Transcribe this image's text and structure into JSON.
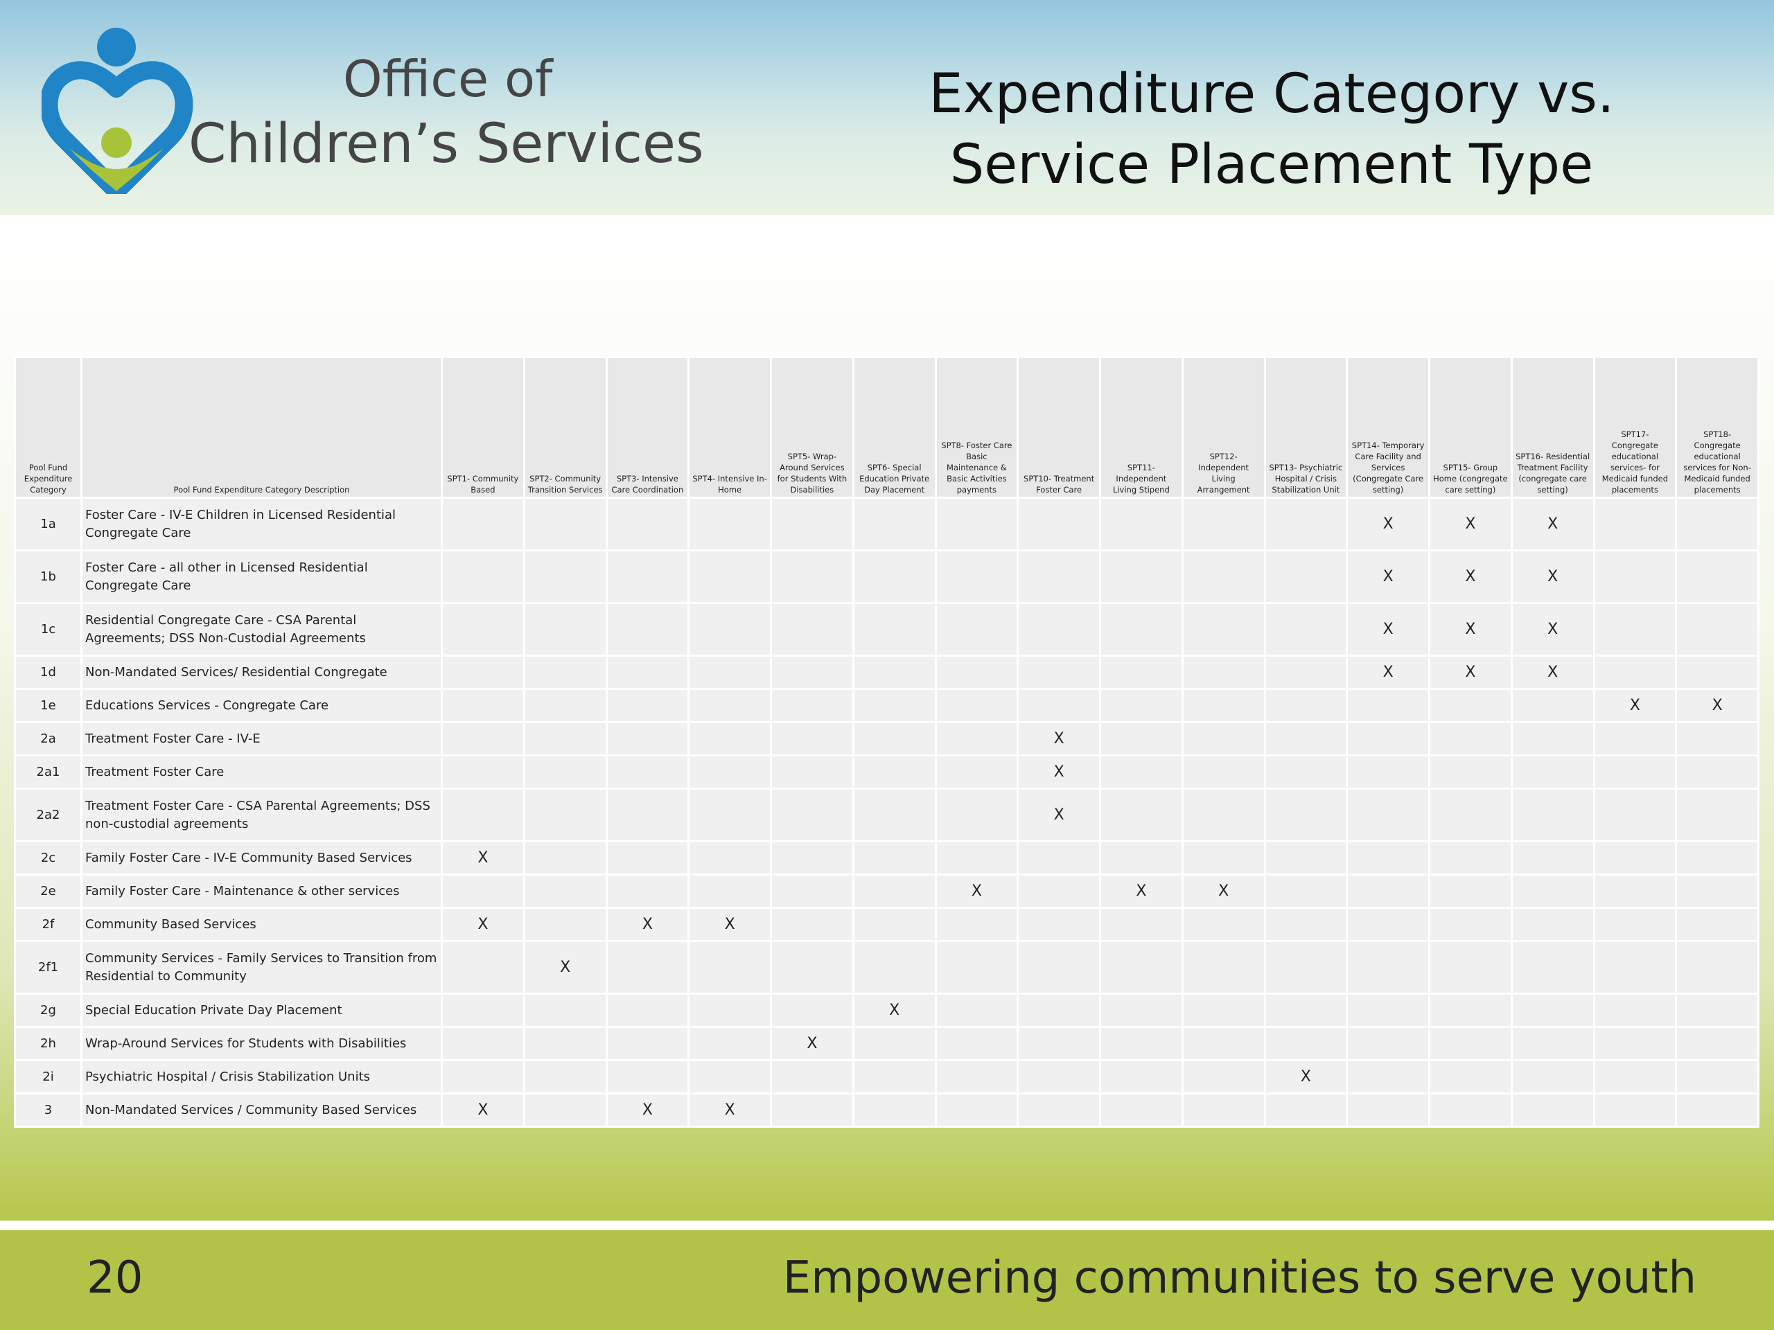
{
  "header": {
    "org_line1": "Office of",
    "org_line2": "Children’s Services",
    "title": "Expenditure Category vs. Service Placement Type"
  },
  "colors": {
    "logo_blue": "#1f85c6",
    "logo_green": "#a8c23a",
    "footer_green": "#b2c447"
  },
  "table": {
    "headers": [
      "Pool Fund Expenditure Category",
      "Pool Fund Expenditure Category Description",
      "SPT1- Community Based",
      "SPT2- Community Transition Services",
      "SPT3- Intensive Care Coordination",
      "SPT4- Intensive In-Home",
      "SPT5- Wrap-Around Services for Students With Disabilities",
      "SPT6- Special Education Private Day Placement",
      "SPT8- Foster Care Basic Maintenance & Basic Activities payments",
      "SPT10- Treatment Foster Care",
      "SPT11- Independent Living Stipend",
      "SPT12- Independent Living Arrangement",
      "SPT13- Psychiatric Hospital / Crisis Stabilization Unit",
      "SPT14- Temporary Care Facility and Services (Congregate Care setting)",
      "SPT15- Group Home (congregate care setting)",
      "SPT16- Residential Treatment Facility (congregate care setting)",
      "SPT17- Congregate educational services- for Medicaid funded placements",
      "SPT18- Congregate educational services for Non-Medicaid funded placements"
    ],
    "rows": [
      {
        "code": "1a",
        "desc": "Foster Care - IV-E Children in Licensed Residential Congregate Care",
        "marks": [
          "",
          "",
          "",
          "",
          "",
          "",
          "",
          "",
          "",
          "",
          "",
          "X",
          "X",
          "X",
          "",
          ""
        ]
      },
      {
        "code": "1b",
        "desc": "Foster Care - all other in Licensed Residential Congregate Care",
        "marks": [
          "",
          "",
          "",
          "",
          "",
          "",
          "",
          "",
          "",
          "",
          "",
          "X",
          "X",
          "X",
          "",
          ""
        ]
      },
      {
        "code": "1c",
        "desc": "Residential Congregate Care - CSA Parental Agreements; DSS Non-Custodial Agreements",
        "marks": [
          "",
          "",
          "",
          "",
          "",
          "",
          "",
          "",
          "",
          "",
          "",
          "X",
          "X",
          "X",
          "",
          ""
        ]
      },
      {
        "code": "1d",
        "desc": "Non-Mandated Services/ Residential Congregate",
        "marks": [
          "",
          "",
          "",
          "",
          "",
          "",
          "",
          "",
          "",
          "",
          "",
          "X",
          "X",
          "X",
          "",
          ""
        ]
      },
      {
        "code": "1e",
        "desc": "Educations Services - Congregate Care",
        "marks": [
          "",
          "",
          "",
          "",
          "",
          "",
          "",
          "",
          "",
          "",
          "",
          "",
          "",
          "",
          "X",
          "X"
        ]
      },
      {
        "code": "2a",
        "desc": "Treatment Foster Care - IV-E",
        "marks": [
          "",
          "",
          "",
          "",
          "",
          "",
          "",
          "X",
          "",
          "",
          "",
          "",
          "",
          "",
          "",
          ""
        ]
      },
      {
        "code": "2a1",
        "desc": "Treatment Foster Care",
        "marks": [
          "",
          "",
          "",
          "",
          "",
          "",
          "",
          "X",
          "",
          "",
          "",
          "",
          "",
          "",
          "",
          ""
        ]
      },
      {
        "code": "2a2",
        "desc": "Treatment Foster Care - CSA Parental Agreements; DSS non-custodial agreements",
        "marks": [
          "",
          "",
          "",
          "",
          "",
          "",
          "",
          "X",
          "",
          "",
          "",
          "",
          "",
          "",
          "",
          ""
        ]
      },
      {
        "code": "2c",
        "desc": "Family Foster Care - IV-E Community Based Services",
        "marks": [
          "X",
          "",
          "",
          "",
          "",
          "",
          "",
          "",
          "",
          "",
          "",
          "",
          "",
          "",
          "",
          ""
        ]
      },
      {
        "code": "2e",
        "desc": "Family Foster Care - Maintenance & other services",
        "marks": [
          "",
          "",
          "",
          "",
          "",
          "",
          "X",
          "",
          "X",
          "X",
          "",
          "",
          "",
          "",
          "",
          ""
        ]
      },
      {
        "code": "2f",
        "desc": "Community Based Services",
        "marks": [
          "X",
          "",
          "X",
          "X",
          "",
          "",
          "",
          "",
          "",
          "",
          "",
          "",
          "",
          "",
          "",
          ""
        ]
      },
      {
        "code": "2f1",
        "desc": "Community Services - Family Services to Transition from Residential to Community",
        "marks": [
          "",
          "X",
          "",
          "",
          "",
          "",
          "",
          "",
          "",
          "",
          "",
          "",
          "",
          "",
          "",
          ""
        ]
      },
      {
        "code": "2g",
        "desc": "Special Education Private Day Placement",
        "marks": [
          "",
          "",
          "",
          "",
          "",
          "X",
          "",
          "",
          "",
          "",
          "",
          "",
          "",
          "",
          "",
          ""
        ]
      },
      {
        "code": "2h",
        "desc": "Wrap-Around Services for Students with Disabilities",
        "marks": [
          "",
          "",
          "",
          "",
          "X",
          "",
          "",
          "",
          "",
          "",
          "",
          "",
          "",
          "",
          "",
          ""
        ]
      },
      {
        "code": "2i",
        "desc": "Psychiatric Hospital / Crisis Stabilization Units",
        "marks": [
          "",
          "",
          "",
          "",
          "",
          "",
          "",
          "",
          "",
          "",
          "X",
          "",
          "",
          "",
          "",
          ""
        ]
      },
      {
        "code": "3",
        "desc": "Non-Mandated Services / Community Based Services",
        "marks": [
          "X",
          "",
          "X",
          "X",
          "",
          "",
          "",
          "",
          "",
          "",
          "",
          "",
          "",
          "",
          "",
          ""
        ]
      }
    ]
  },
  "footer": {
    "page_number": "20",
    "tagline": "Empowering communities to serve youth"
  }
}
